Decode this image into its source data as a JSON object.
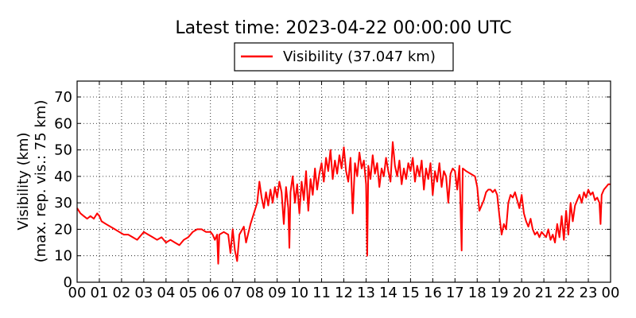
{
  "chart_data": {
    "type": "line",
    "title": "Latest time: 2023-04-22 00:00:00 UTC",
    "ylabel_lines": [
      "Visibility (km)",
      "(max. rep. vis.: 75 km)"
    ],
    "xlabel": "",
    "xlim": [
      0,
      24
    ],
    "ylim": [
      0,
      76
    ],
    "x_ticks": [
      0,
      1,
      2,
      3,
      4,
      5,
      6,
      7,
      8,
      9,
      10,
      11,
      12,
      13,
      14,
      15,
      16,
      17,
      18,
      19,
      20,
      21,
      22,
      23,
      24
    ],
    "x_tick_labels": [
      "00",
      "01",
      "02",
      "03",
      "04",
      "05",
      "06",
      "07",
      "08",
      "09",
      "10",
      "11",
      "12",
      "13",
      "14",
      "15",
      "16",
      "17",
      "18",
      "19",
      "20",
      "21",
      "22",
      "23",
      "00"
    ],
    "y_ticks": [
      0,
      10,
      20,
      30,
      40,
      50,
      60,
      70
    ],
    "y_tick_labels": [
      "0",
      "10",
      "20",
      "30",
      "40",
      "50",
      "60",
      "70"
    ],
    "grid": true,
    "legend_position": "top-center",
    "series": [
      {
        "name": "Visibility (37.047 km)",
        "color": "#ff0000",
        "x_unit": "hour of day (UTC)",
        "y_unit": "km",
        "points": [
          [
            0.0,
            28
          ],
          [
            0.15,
            26
          ],
          [
            0.3,
            25
          ],
          [
            0.45,
            24
          ],
          [
            0.6,
            25
          ],
          [
            0.75,
            24
          ],
          [
            0.9,
            26
          ],
          [
            1.0,
            25
          ],
          [
            1.1,
            23
          ],
          [
            1.3,
            22
          ],
          [
            1.5,
            21
          ],
          [
            1.7,
            20
          ],
          [
            1.9,
            19
          ],
          [
            2.1,
            18
          ],
          [
            2.3,
            18
          ],
          [
            2.5,
            17
          ],
          [
            2.7,
            16
          ],
          [
            2.9,
            18
          ],
          [
            3.0,
            19
          ],
          [
            3.2,
            18
          ],
          [
            3.4,
            17
          ],
          [
            3.6,
            16
          ],
          [
            3.8,
            17
          ],
          [
            4.0,
            15
          ],
          [
            4.2,
            16
          ],
          [
            4.4,
            15
          ],
          [
            4.6,
            14
          ],
          [
            4.8,
            16
          ],
          [
            5.0,
            17
          ],
          [
            5.2,
            19
          ],
          [
            5.4,
            20
          ],
          [
            5.6,
            20
          ],
          [
            5.8,
            19
          ],
          [
            6.0,
            19
          ],
          [
            6.1,
            18
          ],
          [
            6.2,
            16
          ],
          [
            6.3,
            18
          ],
          [
            6.35,
            7
          ],
          [
            6.4,
            18
          ],
          [
            6.6,
            19
          ],
          [
            6.8,
            18
          ],
          [
            6.9,
            11
          ],
          [
            7.0,
            20
          ],
          [
            7.1,
            12
          ],
          [
            7.2,
            8
          ],
          [
            7.3,
            18
          ],
          [
            7.5,
            21
          ],
          [
            7.6,
            15
          ],
          [
            7.8,
            22
          ],
          [
            7.95,
            26
          ],
          [
            8.1,
            30
          ],
          [
            8.2,
            38
          ],
          [
            8.3,
            32
          ],
          [
            8.4,
            28
          ],
          [
            8.5,
            34
          ],
          [
            8.6,
            29
          ],
          [
            8.7,
            35
          ],
          [
            8.8,
            30
          ],
          [
            8.9,
            36
          ],
          [
            9.0,
            32
          ],
          [
            9.1,
            38
          ],
          [
            9.2,
            34
          ],
          [
            9.3,
            22
          ],
          [
            9.4,
            36
          ],
          [
            9.5,
            28
          ],
          [
            9.55,
            13
          ],
          [
            9.6,
            34
          ],
          [
            9.7,
            40
          ],
          [
            9.8,
            30
          ],
          [
            9.9,
            37
          ],
          [
            10.0,
            26
          ],
          [
            10.1,
            38
          ],
          [
            10.2,
            31
          ],
          [
            10.3,
            42
          ],
          [
            10.4,
            27
          ],
          [
            10.5,
            39
          ],
          [
            10.6,
            33
          ],
          [
            10.7,
            43
          ],
          [
            10.8,
            35
          ],
          [
            10.9,
            41
          ],
          [
            11.0,
            45
          ],
          [
            11.1,
            38
          ],
          [
            11.2,
            47
          ],
          [
            11.3,
            42
          ],
          [
            11.4,
            50
          ],
          [
            11.5,
            39
          ],
          [
            11.6,
            46
          ],
          [
            11.7,
            41
          ],
          [
            11.8,
            48
          ],
          [
            11.9,
            43
          ],
          [
            12.0,
            51
          ],
          [
            12.1,
            42
          ],
          [
            12.2,
            38
          ],
          [
            12.3,
            47
          ],
          [
            12.4,
            26
          ],
          [
            12.5,
            45
          ],
          [
            12.6,
            40
          ],
          [
            12.7,
            49
          ],
          [
            12.8,
            43
          ],
          [
            12.9,
            46
          ],
          [
            13.0,
            37
          ],
          [
            13.05,
            10
          ],
          [
            13.1,
            44
          ],
          [
            13.2,
            39
          ],
          [
            13.3,
            48
          ],
          [
            13.4,
            41
          ],
          [
            13.5,
            45
          ],
          [
            13.6,
            36
          ],
          [
            13.7,
            43
          ],
          [
            13.8,
            40
          ],
          [
            13.9,
            47
          ],
          [
            14.0,
            42
          ],
          [
            14.1,
            38
          ],
          [
            14.2,
            53
          ],
          [
            14.3,
            44
          ],
          [
            14.4,
            40
          ],
          [
            14.5,
            46
          ],
          [
            14.6,
            37
          ],
          [
            14.7,
            43
          ],
          [
            14.8,
            39
          ],
          [
            14.9,
            45
          ],
          [
            15.0,
            42
          ],
          [
            15.1,
            47
          ],
          [
            15.2,
            38
          ],
          [
            15.3,
            44
          ],
          [
            15.4,
            40
          ],
          [
            15.5,
            46
          ],
          [
            15.6,
            35
          ],
          [
            15.7,
            43
          ],
          [
            15.8,
            39
          ],
          [
            15.9,
            45
          ],
          [
            16.0,
            33
          ],
          [
            16.1,
            42
          ],
          [
            16.2,
            38
          ],
          [
            16.3,
            45
          ],
          [
            16.4,
            36
          ],
          [
            16.5,
            42
          ],
          [
            16.6,
            40
          ],
          [
            16.7,
            30
          ],
          [
            16.8,
            41
          ],
          [
            16.9,
            43
          ],
          [
            17.0,
            42
          ],
          [
            17.1,
            35
          ],
          [
            17.2,
            44
          ],
          [
            17.3,
            12
          ],
          [
            17.35,
            43
          ],
          [
            17.5,
            42
          ],
          [
            17.7,
            41
          ],
          [
            17.9,
            40
          ],
          [
            18.0,
            36
          ],
          [
            18.1,
            27
          ],
          [
            18.2,
            29
          ],
          [
            18.3,
            31
          ],
          [
            18.4,
            34
          ],
          [
            18.5,
            35
          ],
          [
            18.6,
            35
          ],
          [
            18.7,
            34
          ],
          [
            18.8,
            35
          ],
          [
            18.9,
            33
          ],
          [
            19.0,
            25
          ],
          [
            19.1,
            18
          ],
          [
            19.2,
            22
          ],
          [
            19.3,
            20
          ],
          [
            19.4,
            30
          ],
          [
            19.5,
            33
          ],
          [
            19.6,
            32
          ],
          [
            19.7,
            34
          ],
          [
            19.8,
            31
          ],
          [
            19.9,
            28
          ],
          [
            20.0,
            33
          ],
          [
            20.1,
            26
          ],
          [
            20.2,
            23
          ],
          [
            20.3,
            21
          ],
          [
            20.4,
            24
          ],
          [
            20.5,
            20
          ],
          [
            20.6,
            18
          ],
          [
            20.7,
            19
          ],
          [
            20.8,
            17
          ],
          [
            20.9,
            19
          ],
          [
            21.0,
            18
          ],
          [
            21.1,
            17
          ],
          [
            21.2,
            20
          ],
          [
            21.3,
            16
          ],
          [
            21.4,
            18
          ],
          [
            21.5,
            15
          ],
          [
            21.6,
            22
          ],
          [
            21.7,
            17
          ],
          [
            21.8,
            25
          ],
          [
            21.9,
            16
          ],
          [
            22.0,
            27
          ],
          [
            22.1,
            18
          ],
          [
            22.2,
            30
          ],
          [
            22.3,
            23
          ],
          [
            22.4,
            29
          ],
          [
            22.5,
            31
          ],
          [
            22.6,
            33
          ],
          [
            22.7,
            30
          ],
          [
            22.8,
            34
          ],
          [
            22.9,
            32
          ],
          [
            23.0,
            35
          ],
          [
            23.1,
            33
          ],
          [
            23.2,
            34
          ],
          [
            23.3,
            31
          ],
          [
            23.4,
            32
          ],
          [
            23.5,
            30
          ],
          [
            23.55,
            22
          ],
          [
            23.6,
            33
          ],
          [
            23.7,
            35
          ],
          [
            23.8,
            36
          ],
          [
            23.9,
            37
          ],
          [
            24.0,
            37
          ]
        ]
      }
    ]
  }
}
